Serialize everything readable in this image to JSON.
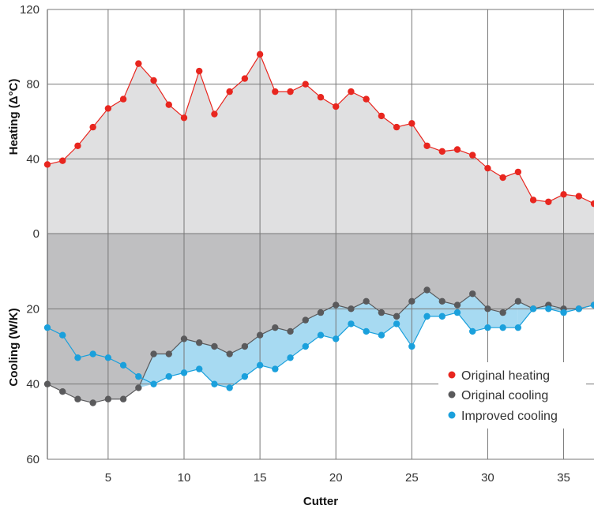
{
  "chart_data": {
    "type": "line",
    "xlabel": "Cutter",
    "ylabel_top": "Heating (Δ°C)",
    "ylabel_bottom": "Cooling (W/K)",
    "x_ticks": [
      5,
      10,
      15,
      20,
      25,
      30,
      35
    ],
    "xlim": [
      1,
      37
    ],
    "heating_ticks": [
      0,
      40,
      80,
      120
    ],
    "heating_ylim": [
      0,
      120
    ],
    "cooling_ticks": [
      20,
      40,
      60
    ],
    "cooling_ylim": [
      0,
      60
    ],
    "grid": true,
    "legend_position": "bottom-right",
    "series": [
      {
        "name": "Original heating",
        "color": "#e8261f",
        "axis": "heating",
        "x": [
          1,
          2,
          3,
          4,
          5,
          6,
          7,
          8,
          9,
          10,
          11,
          12,
          13,
          14,
          15,
          16,
          17,
          18,
          19,
          20,
          21,
          22,
          23,
          24,
          25,
          26,
          27,
          28,
          29,
          30,
          31,
          32,
          33,
          34,
          35,
          36,
          37
        ],
        "values": [
          37,
          39,
          47,
          57,
          67,
          72,
          91,
          82,
          69,
          62,
          87,
          64,
          76,
          83,
          96,
          76,
          76,
          80,
          73,
          68,
          76,
          72,
          63,
          57,
          59,
          47,
          44,
          45,
          42,
          35,
          30,
          33,
          18,
          17,
          21,
          20,
          16
        ]
      },
      {
        "name": "Original cooling",
        "color": "#5a5a5c",
        "axis": "cooling",
        "x": [
          1,
          2,
          3,
          4,
          5,
          6,
          7,
          8,
          9,
          10,
          11,
          12,
          13,
          14,
          15,
          16,
          17,
          18,
          19,
          20,
          21,
          22,
          23,
          24,
          25,
          26,
          27,
          28,
          29,
          30,
          31,
          32,
          33,
          34,
          35,
          36,
          37
        ],
        "values": [
          40,
          42,
          44,
          45,
          44,
          44,
          41,
          32,
          32,
          28,
          29,
          30,
          32,
          30,
          27,
          25,
          26,
          23,
          21,
          19,
          20,
          18,
          21,
          22,
          18,
          15,
          18,
          19,
          16,
          20,
          21,
          18,
          20,
          19,
          20,
          20,
          19
        ]
      },
      {
        "name": "Improved cooling",
        "color": "#1aa0dc",
        "axis": "cooling",
        "x": [
          1,
          2,
          3,
          4,
          5,
          6,
          7,
          8,
          9,
          10,
          11,
          12,
          13,
          14,
          15,
          16,
          17,
          18,
          19,
          20,
          21,
          22,
          23,
          24,
          25,
          26,
          27,
          28,
          29,
          30,
          31,
          32,
          33,
          34,
          35,
          36,
          37
        ],
        "values": [
          25,
          27,
          33,
          32,
          33,
          35,
          38,
          40,
          38,
          37,
          36,
          40,
          41,
          38,
          35,
          36,
          33,
          30,
          27,
          28,
          24,
          26,
          27,
          24,
          30,
          22,
          22,
          21,
          26,
          25,
          25,
          25,
          20,
          20,
          21,
          20,
          19
        ]
      }
    ]
  }
}
